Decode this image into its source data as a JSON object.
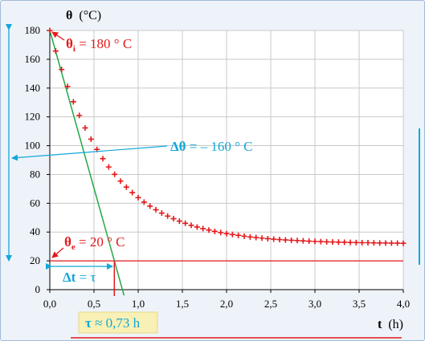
{
  "chart_data": {
    "type": "scatter",
    "ylabel_sym": "θ",
    "ylabel_unit": "(°C)",
    "xlabel_sym": "t",
    "xlabel_unit": "(h)",
    "xlim": [
      0,
      4
    ],
    "ylim": [
      0,
      180
    ],
    "x_ticks": [
      "0,0",
      "0,5",
      "1,0",
      "1,5",
      "2,0",
      "2,5",
      "3,0",
      "3,5",
      "4,0"
    ],
    "y_ticks": [
      "0",
      "20",
      "40",
      "60",
      "80",
      "100",
      "120",
      "140",
      "160",
      "180"
    ],
    "grid": true,
    "colors": {
      "points": "#e3191b",
      "tangent": "#22a844",
      "asymptote": "#e3191b",
      "annotation_blue": "#12a7d8",
      "tau_box": "#f8f0b4"
    },
    "series_points": {
      "x": [
        0.0,
        0.0667,
        0.1333,
        0.2,
        0.2667,
        0.3333,
        0.4,
        0.4667,
        0.5333,
        0.6,
        0.6667,
        0.7333,
        0.8,
        0.8667,
        0.9333,
        1.0,
        1.0667,
        1.1333,
        1.2,
        1.2667,
        1.3333,
        1.4,
        1.4667,
        1.5333,
        1.6,
        1.6667,
        1.7333,
        1.8,
        1.8667,
        1.9333,
        2.0,
        2.0667,
        2.1333,
        2.2,
        2.2667,
        2.3333,
        2.4,
        2.4667,
        2.5333,
        2.6,
        2.6667,
        2.7333,
        2.8,
        2.8667,
        2.9333,
        3.0,
        3.0667,
        3.1333,
        3.2,
        3.2667,
        3.3333,
        3.4,
        3.4667,
        3.5333,
        3.6,
        3.6667,
        3.7333,
        3.8,
        3.8667,
        3.9333,
        4.0
      ],
      "y": [
        180.0,
        165.7,
        152.9,
        141.1,
        130.5,
        121.0,
        112.3,
        104.5,
        97.4,
        91.0,
        85.2,
        80.1,
        75.4,
        71.2,
        67.4,
        63.9,
        60.8,
        58.0,
        55.5,
        53.2,
        51.1,
        49.3,
        47.6,
        46.1,
        44.7,
        43.5,
        42.4,
        41.4,
        40.5,
        39.7,
        38.9,
        38.3,
        37.7,
        37.1,
        36.6,
        36.2,
        35.8,
        35.4,
        35.1,
        34.8,
        34.5,
        34.3,
        34.1,
        33.9,
        33.7,
        33.5,
        33.4,
        33.2,
        33.1,
        33.0,
        32.9,
        32.8,
        32.7,
        32.6,
        32.6,
        32.5,
        32.4,
        32.4,
        32.3,
        32.3,
        32.2
      ]
    },
    "tangent": {
      "x": [
        0.0,
        0.84
      ],
      "y": [
        180,
        -4
      ]
    },
    "asymptote_y": 20,
    "tau": 0.73,
    "annotations": {
      "theta_i": {
        "sym": "θ",
        "sub": "i",
        "text": " = 180 ° C"
      },
      "delta_theta": {
        "sym": "Δθ",
        "text": " = – 160 ° C"
      },
      "theta_e": {
        "sym": "θ",
        "sub": "e",
        "text": " = 20 ° C"
      },
      "delta_t": {
        "sym": "Δt",
        "text": " = τ"
      },
      "tau": {
        "sym": "τ",
        "text": " ≈ 0,73 h"
      }
    }
  }
}
